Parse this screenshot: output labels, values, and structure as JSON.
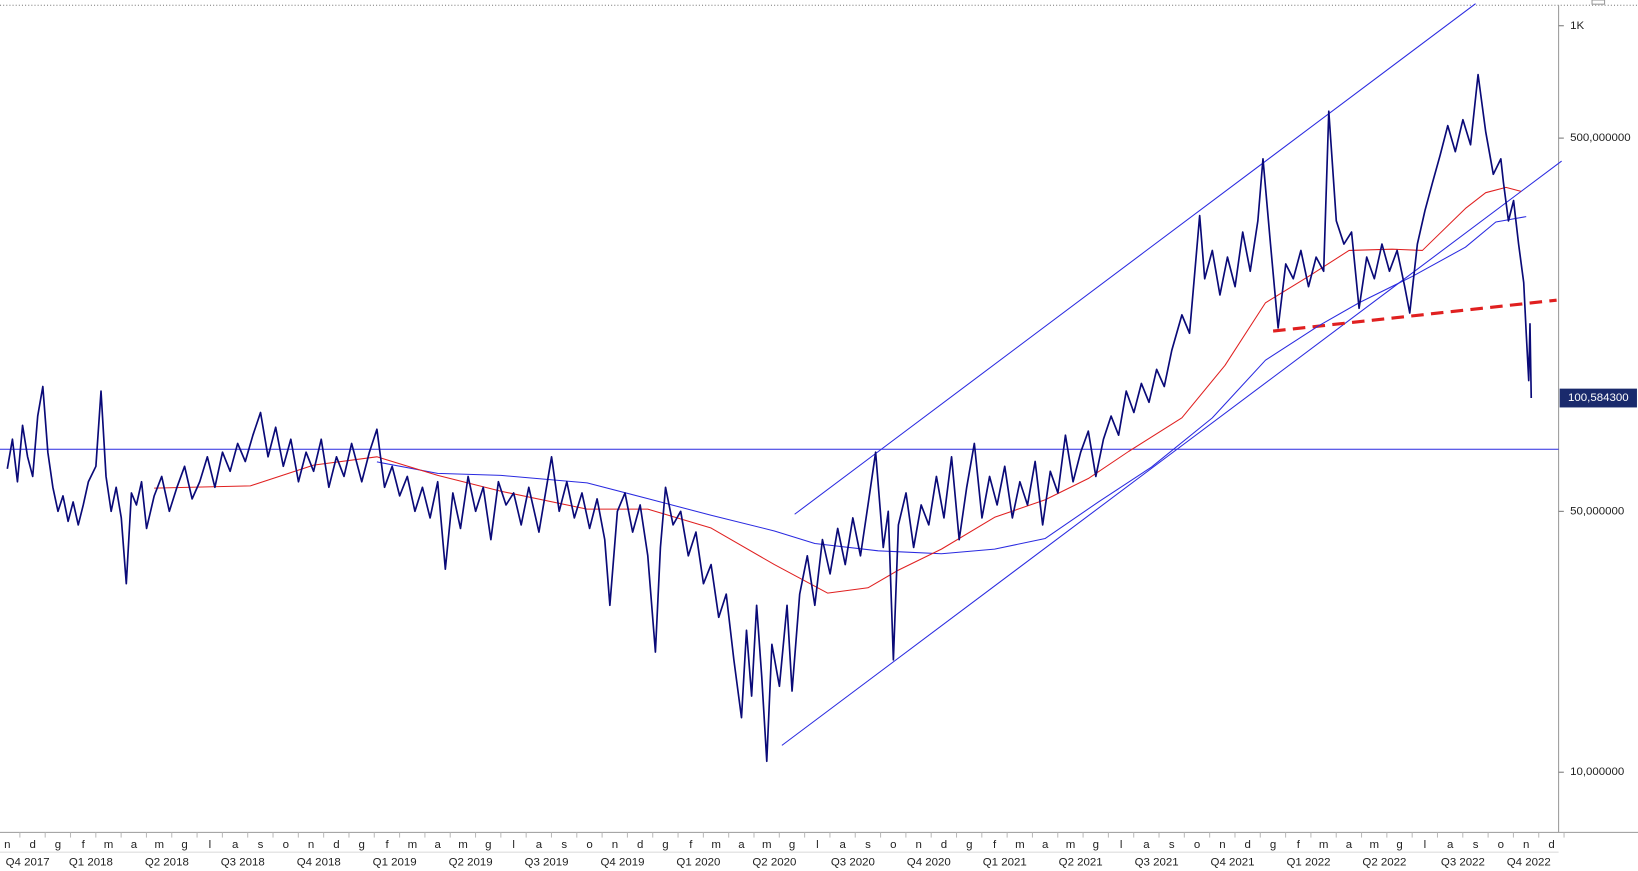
{
  "chart_data": {
    "type": "line",
    "ylog": true,
    "grid": false,
    "xlim": [
      -0.29,
      61.28
    ],
    "ylim": [
      6.9,
      1135
    ],
    "yticks": [
      {
        "value": 1000,
        "label": "1K"
      },
      {
        "value": 500,
        "label": "500,000000"
      },
      {
        "value": 50,
        "label": "50,000000"
      },
      {
        "value": 10,
        "label": "10,000000"
      }
    ],
    "xticks": [
      {
        "value": 0,
        "label": "n"
      },
      {
        "value": 1,
        "label": "d"
      },
      {
        "value": 2,
        "label": "g"
      },
      {
        "value": 3,
        "label": "f"
      },
      {
        "value": 4,
        "label": "m"
      },
      {
        "value": 5,
        "label": "a"
      },
      {
        "value": 6,
        "label": "m"
      },
      {
        "value": 7,
        "label": "g"
      },
      {
        "value": 8,
        "label": "l"
      },
      {
        "value": 9,
        "label": "a"
      },
      {
        "value": 10,
        "label": "s"
      },
      {
        "value": 11,
        "label": "o"
      },
      {
        "value": 12,
        "label": "n"
      },
      {
        "value": 13,
        "label": "d"
      },
      {
        "value": 14,
        "label": "g"
      },
      {
        "value": 15,
        "label": "f"
      },
      {
        "value": 16,
        "label": "m"
      },
      {
        "value": 17,
        "label": "a"
      },
      {
        "value": 18,
        "label": "m"
      },
      {
        "value": 19,
        "label": "g"
      },
      {
        "value": 20,
        "label": "l"
      },
      {
        "value": 21,
        "label": "a"
      },
      {
        "value": 22,
        "label": "s"
      },
      {
        "value": 23,
        "label": "o"
      },
      {
        "value": 24,
        "label": "n"
      },
      {
        "value": 25,
        "label": "d"
      },
      {
        "value": 26,
        "label": "g"
      },
      {
        "value": 27,
        "label": "f"
      },
      {
        "value": 28,
        "label": "m"
      },
      {
        "value": 29,
        "label": "a"
      },
      {
        "value": 30,
        "label": "m"
      },
      {
        "value": 31,
        "label": "g"
      },
      {
        "value": 32,
        "label": "l"
      },
      {
        "value": 33,
        "label": "a"
      },
      {
        "value": 34,
        "label": "s"
      },
      {
        "value": 35,
        "label": "o"
      },
      {
        "value": 36,
        "label": "n"
      },
      {
        "value": 37,
        "label": "d"
      },
      {
        "value": 38,
        "label": "g"
      },
      {
        "value": 39,
        "label": "f"
      },
      {
        "value": 40,
        "label": "m"
      },
      {
        "value": 41,
        "label": "a"
      },
      {
        "value": 42,
        "label": "m"
      },
      {
        "value": 43,
        "label": "g"
      },
      {
        "value": 44,
        "label": "l"
      },
      {
        "value": 45,
        "label": "a"
      },
      {
        "value": 46,
        "label": "s"
      },
      {
        "value": 47,
        "label": "o"
      },
      {
        "value": 48,
        "label": "n"
      },
      {
        "value": 49,
        "label": "d"
      },
      {
        "value": 50,
        "label": "g"
      },
      {
        "value": 51,
        "label": "f"
      },
      {
        "value": 52,
        "label": "m"
      },
      {
        "value": 53,
        "label": "a"
      },
      {
        "value": 54,
        "label": "m"
      },
      {
        "value": 55,
        "label": "g"
      },
      {
        "value": 56,
        "label": "l"
      },
      {
        "value": 57,
        "label": "a"
      },
      {
        "value": 58,
        "label": "s"
      },
      {
        "value": 59,
        "label": "o"
      },
      {
        "value": 60,
        "label": "n"
      },
      {
        "value": 61,
        "label": "d"
      }
    ],
    "quarter_ticks": [
      {
        "value": 0.8,
        "label": "Q4 2017"
      },
      {
        "value": 3.3,
        "label": "Q1 2018"
      },
      {
        "value": 6.3,
        "label": "Q2 2018"
      },
      {
        "value": 9.3,
        "label": "Q3 2018"
      },
      {
        "value": 12.3,
        "label": "Q4 2018"
      },
      {
        "value": 15.3,
        "label": "Q1 2019"
      },
      {
        "value": 18.3,
        "label": "Q2 2019"
      },
      {
        "value": 21.3,
        "label": "Q3 2019"
      },
      {
        "value": 24.3,
        "label": "Q4 2019"
      },
      {
        "value": 27.3,
        "label": "Q1 2020"
      },
      {
        "value": 30.3,
        "label": "Q2 2020"
      },
      {
        "value": 33.4,
        "label": "Q3 2020"
      },
      {
        "value": 36.4,
        "label": "Q4 2020"
      },
      {
        "value": 39.4,
        "label": "Q1 2021"
      },
      {
        "value": 42.4,
        "label": "Q2 2021"
      },
      {
        "value": 45.4,
        "label": "Q3 2021"
      },
      {
        "value": 48.4,
        "label": "Q4 2021"
      },
      {
        "value": 51.4,
        "label": "Q1 2022"
      },
      {
        "value": 54.4,
        "label": "Q2 2022"
      },
      {
        "value": 57.5,
        "label": "Q3 2022"
      },
      {
        "value": 60.1,
        "label": "Q4 2022"
      }
    ],
    "series": [
      {
        "color": "#0a0a78",
        "width": 1.6,
        "x": [
          0,
          0.2,
          0.4,
          0.6,
          0.8,
          1.0,
          1.2,
          1.4,
          1.6,
          1.8,
          2.0,
          2.2,
          2.4,
          2.6,
          2.8,
          3.0,
          3.2,
          3.5,
          3.7,
          3.9,
          4.1,
          4.3,
          4.5,
          4.7,
          4.9,
          5.1,
          5.3,
          5.5,
          5.8,
          6.1,
          6.4,
          6.7,
          7.0,
          7.3,
          7.6,
          7.9,
          8.2,
          8.5,
          8.8,
          9.1,
          9.4,
          9.7,
          10.0,
          10.3,
          10.6,
          10.9,
          11.2,
          11.5,
          11.8,
          12.1,
          12.4,
          12.7,
          13.0,
          13.3,
          13.6,
          14.0,
          14.3,
          14.6,
          14.9,
          15.2,
          15.5,
          15.8,
          16.1,
          16.4,
          16.7,
          17.0,
          17.3,
          17.6,
          17.9,
          18.2,
          18.5,
          18.8,
          19.1,
          19.4,
          19.7,
          20.0,
          20.3,
          20.6,
          21.0,
          21.5,
          21.8,
          22.1,
          22.4,
          22.7,
          23.0,
          23.3,
          23.6,
          23.8,
          24.1,
          24.4,
          24.7,
          25.0,
          25.3,
          25.6,
          25.8,
          26.0,
          26.3,
          26.6,
          26.9,
          27.2,
          27.5,
          27.8,
          28.1,
          28.4,
          28.7,
          29.0,
          29.2,
          29.4,
          29.6,
          29.8,
          30.0,
          30.2,
          30.5,
          30.8,
          31.0,
          31.3,
          31.6,
          31.9,
          32.2,
          32.5,
          32.8,
          33.1,
          33.4,
          33.7,
          34.0,
          34.3,
          34.6,
          34.8,
          35.0,
          35.2,
          35.5,
          35.8,
          36.1,
          36.4,
          36.7,
          37.0,
          37.3,
          37.6,
          37.9,
          38.2,
          38.5,
          38.8,
          39.1,
          39.4,
          39.7,
          40.0,
          40.3,
          40.6,
          40.9,
          41.2,
          41.5,
          41.8,
          42.1,
          42.4,
          42.7,
          43.0,
          43.3,
          43.6,
          43.9,
          44.2,
          44.5,
          44.8,
          45.1,
          45.4,
          45.7,
          46.0,
          46.4,
          46.7,
          47.1,
          47.3,
          47.6,
          47.9,
          48.2,
          48.5,
          48.8,
          49.1,
          49.4,
          49.6,
          49.9,
          50.2,
          50.5,
          50.8,
          51.1,
          51.4,
          51.7,
          52.0,
          52.2,
          52.5,
          52.8,
          53.1,
          53.4,
          53.7,
          54.0,
          54.3,
          54.6,
          54.9,
          55.2,
          55.4,
          55.7,
          56.0,
          56.3,
          56.6,
          56.9,
          57.2,
          57.5,
          57.8,
          58.1,
          58.4,
          58.7,
          59.0,
          59.1,
          59.3,
          59.5,
          59.7,
          59.9,
          60.0,
          60.1,
          60.15,
          60.2
        ],
        "values": [
          65,
          78,
          60,
          85,
          70,
          62,
          90,
          108,
          72,
          58,
          50,
          55,
          47,
          53,
          46,
          52,
          60,
          66,
          105,
          62,
          50,
          58,
          48,
          32,
          56,
          52,
          60,
          45,
          55,
          62,
          50,
          58,
          66,
          54,
          60,
          70,
          58,
          72,
          64,
          76,
          68,
          80,
          92,
          70,
          84,
          66,
          78,
          60,
          72,
          64,
          78,
          58,
          70,
          62,
          76,
          60,
          72,
          83,
          58,
          66,
          55,
          62,
          50,
          58,
          48,
          60,
          35,
          56,
          45,
          62,
          50,
          58,
          42,
          60,
          52,
          56,
          46,
          58,
          44,
          70,
          50,
          60,
          48,
          56,
          45,
          54,
          42,
          28,
          50,
          56,
          44,
          52,
          38,
          21,
          40,
          58,
          46,
          50,
          38,
          44,
          32,
          36,
          26,
          30,
          20,
          14,
          24,
          16,
          28,
          18,
          10.7,
          22,
          17,
          28,
          16.5,
          30,
          38,
          28,
          42,
          34,
          45,
          36,
          48,
          38,
          52,
          72,
          40,
          50,
          20,
          46,
          56,
          40,
          52,
          46,
          62,
          48,
          70,
          42,
          58,
          76,
          48,
          62,
          52,
          66,
          48,
          60,
          52,
          68,
          46,
          64,
          56,
          80,
          60,
          72,
          82,
          62,
          78,
          90,
          80,
          105,
          92,
          110,
          98,
          120,
          108,
          135,
          168,
          150,
          310,
          210,
          250,
          190,
          240,
          200,
          280,
          220,
          300,
          440,
          260,
          155,
          230,
          210,
          250,
          200,
          240,
          220,
          590,
          300,
          260,
          280,
          175,
          240,
          210,
          260,
          220,
          250,
          200,
          170,
          260,
          320,
          380,
          450,
          540,
          460,
          560,
          480,
          740,
          520,
          400,
          440,
          380,
          300,
          340,
          260,
          205,
          150,
          112,
          159,
          100.5843
        ]
      },
      {
        "color": "#e02020",
        "width": 1,
        "x": [
          5.8,
          9.6,
          12.1,
          14.6,
          17,
          19.5,
          22.9,
          25.3,
          27.8,
          30.3,
          32.4,
          34,
          35.2,
          36.9,
          39,
          41,
          42.7,
          44.3,
          46.4,
          48.1,
          49.7,
          51.4,
          53,
          54.7,
          55.9,
          57.6,
          58.4,
          59.2,
          59.8
        ],
        "values": [
          57.7,
          58.5,
          66.5,
          70,
          62.4,
          56.6,
          50.7,
          50.7,
          45.1,
          36,
          30.2,
          31.2,
          34.8,
          39.6,
          48.2,
          53.7,
          61.2,
          72.4,
          89,
          123,
          181,
          213,
          250,
          252,
          250,
          324,
          357,
          369,
          360
        ]
      },
      {
        "color": "#2a2ae0",
        "width": 1,
        "x": [
          14.6,
          17,
          19.5,
          22.9,
          25.3,
          27.8,
          30.3,
          31.9,
          34.4,
          36.9,
          39,
          41,
          43.1,
          45.2,
          47.6,
          49.7,
          51.8,
          53.4,
          55.5,
          57.6,
          58.8,
          60
        ],
        "values": [
          67.8,
          63.2,
          62.4,
          59.6,
          54.1,
          48.8,
          44.3,
          41,
          39.2,
          38.5,
          39.6,
          42.3,
          53,
          65.7,
          89,
          127,
          157,
          181,
          213,
          255,
          298,
          308
        ]
      }
    ],
    "trendlines": [
      {
        "color": "#2a2ae0",
        "width": 1,
        "dashed": false,
        "x": [
          31.1,
          58.0
        ],
        "values": [
          49.1,
          1146
        ]
      },
      {
        "color": "#2a2ae0",
        "width": 1,
        "dashed": false,
        "x": [
          30.6,
          61.4
        ],
        "values": [
          11.8,
          434
        ]
      },
      {
        "color": "#2a2ae0",
        "width": 1,
        "dashed": false,
        "x": [
          -0.29,
          61.28
        ],
        "values": [
          73.3,
          73.3
        ]
      },
      {
        "color": "#e02020",
        "width": 3,
        "dashed": true,
        "x": [
          50.0,
          61.2
        ],
        "values": [
          152,
          184
        ]
      }
    ],
    "price_label": {
      "value": 100.5843,
      "label": "100,584300",
      "color": "#1a2a6c"
    }
  }
}
